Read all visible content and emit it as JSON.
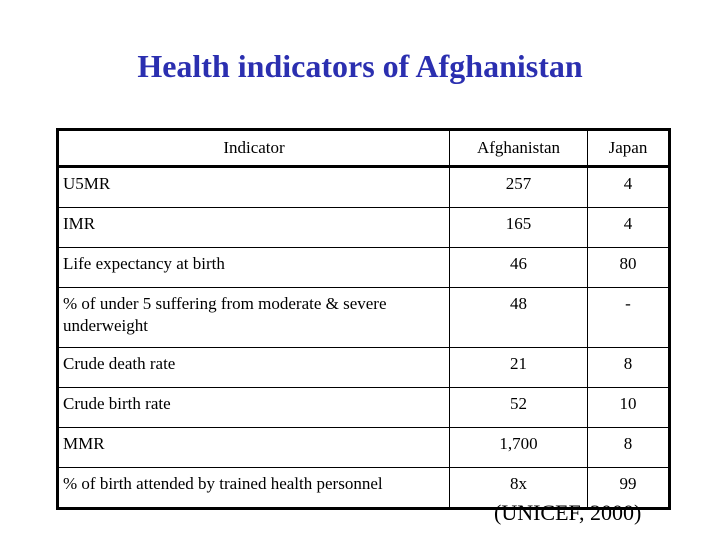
{
  "title": "Health indicators of Afghanistan",
  "table": {
    "headers": [
      "Indicator",
      "Afghanistan",
      "Japan"
    ],
    "rows": [
      {
        "indicator": "U5MR",
        "afghanistan": "257",
        "japan": "4"
      },
      {
        "indicator": "IMR",
        "afghanistan": "165",
        "japan": "4"
      },
      {
        "indicator": "Life expectancy at birth",
        "afghanistan": "46",
        "japan": "80"
      },
      {
        "indicator": "% of under 5 suffering from moderate & severe underweight",
        "afghanistan": "48",
        "japan": "-"
      },
      {
        "indicator": "Crude death rate",
        "afghanistan": "21",
        "japan": "8"
      },
      {
        "indicator": "Crude birth rate",
        "afghanistan": "52",
        "japan": "10"
      },
      {
        "indicator": "MMR",
        "afghanistan": "1,700",
        "japan": "8"
      },
      {
        "indicator": "% of birth attended by trained health personnel",
        "afghanistan": "8x",
        "japan": "99"
      }
    ]
  },
  "source": "(UNICEF, 2000)",
  "colors": {
    "title": "#2b2fb0",
    "text": "#000000",
    "background": "#ffffff"
  }
}
